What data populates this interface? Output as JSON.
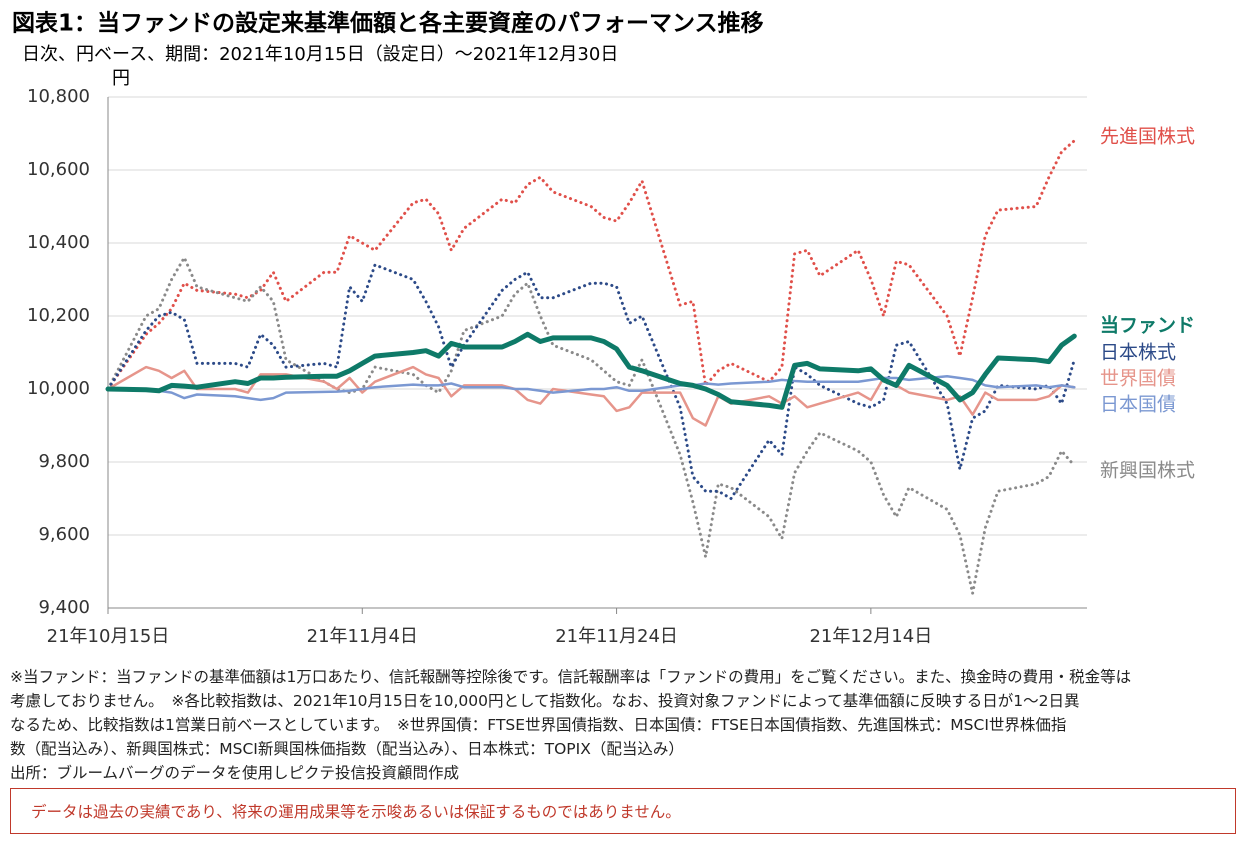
{
  "header": {
    "title": "図表1：当ファンドの設定来基準価額と各主要資産のパフォーマンス推移",
    "subtitle": "日次、円ベース、期間：2021年10月15日（設定日）～2021年12月30日"
  },
  "chart_data": {
    "type": "line",
    "y_unit": "円",
    "grid": true,
    "x": [
      "2021-10-15",
      "2021-10-18",
      "2021-10-19",
      "2021-10-20",
      "2021-10-21",
      "2021-10-22",
      "2021-10-25",
      "2021-10-26",
      "2021-10-27",
      "2021-10-28",
      "2021-10-29",
      "2021-11-01",
      "2021-11-02",
      "2021-11-03",
      "2021-11-04",
      "2021-11-05",
      "2021-11-08",
      "2021-11-09",
      "2021-11-10",
      "2021-11-11",
      "2021-11-12",
      "2021-11-15",
      "2021-11-16",
      "2021-11-17",
      "2021-11-18",
      "2021-11-19",
      "2021-11-22",
      "2021-11-23",
      "2021-11-24",
      "2021-11-25",
      "2021-11-26",
      "2021-11-29",
      "2021-11-30",
      "2021-12-01",
      "2021-12-02",
      "2021-12-03",
      "2021-12-06",
      "2021-12-07",
      "2021-12-08",
      "2021-12-09",
      "2021-12-10",
      "2021-12-13",
      "2021-12-14",
      "2021-12-15",
      "2021-12-16",
      "2021-12-17",
      "2021-12-20",
      "2021-12-21",
      "2021-12-22",
      "2021-12-23",
      "2021-12-24",
      "2021-12-27",
      "2021-12-28",
      "2021-12-29",
      "2021-12-30"
    ],
    "xlim": [
      "2021-10-15",
      "2021-12-31"
    ],
    "xticks": [
      {
        "value": "2021-10-15",
        "label": "21年10月15日"
      },
      {
        "value": "2021-11-04",
        "label": "21年11月4日"
      },
      {
        "value": "2021-11-24",
        "label": "21年11月24日"
      },
      {
        "value": "2021-12-14",
        "label": "21年12月14日"
      }
    ],
    "ylim": [
      9400,
      10800
    ],
    "yticks": [
      {
        "value": 9400,
        "label": "9,400"
      },
      {
        "value": 9600,
        "label": "9,600"
      },
      {
        "value": 9800,
        "label": "9,800"
      },
      {
        "value": 10000,
        "label": "10,000"
      },
      {
        "value": 10200,
        "label": "10,200"
      },
      {
        "value": 10400,
        "label": "10,400"
      },
      {
        "value": 10600,
        "label": "10,600"
      },
      {
        "value": 10800,
        "label": "10,800"
      }
    ],
    "series": [
      {
        "name": "先進国株式",
        "color": "#e0504a",
        "line_style": "dotted",
        "values": [
          10000,
          10150,
          10180,
          10220,
          10290,
          10270,
          10260,
          10250,
          10270,
          10320,
          10240,
          10320,
          10320,
          10420,
          10400,
          10380,
          10510,
          10520,
          10480,
          10380,
          10440,
          10520,
          10510,
          10560,
          10580,
          10540,
          10500,
          10470,
          10460,
          10510,
          10570,
          10230,
          10240,
          10010,
          10050,
          10070,
          10020,
          10060,
          10370,
          10380,
          10310,
          10380,
          10300,
          10200,
          10350,
          10340,
          10200,
          10090,
          10250,
          10420,
          10490,
          10500,
          10580,
          10650,
          10680
        ]
      },
      {
        "name": "新興国株式",
        "color": "#8a8a8a",
        "line_style": "dotted",
        "values": [
          10000,
          10200,
          10220,
          10300,
          10360,
          10280,
          10250,
          10240,
          10280,
          10240,
          10080,
          10020,
          10000,
          9990,
          10000,
          10060,
          10040,
          10010,
          9990,
          10050,
          10160,
          10200,
          10260,
          10290,
          10200,
          10120,
          10080,
          10050,
          10020,
          10010,
          10080,
          9820,
          9690,
          9540,
          9740,
          9730,
          9650,
          9590,
          9770,
          9830,
          9880,
          9830,
          9800,
          9710,
          9650,
          9730,
          9670,
          9600,
          9440,
          9620,
          9720,
          9740,
          9760,
          9830,
          9790
        ]
      },
      {
        "name": "日本株式",
        "color": "#2c4a88",
        "line_style": "dotted",
        "values": [
          10000,
          10160,
          10200,
          10210,
          10190,
          10070,
          10070,
          10060,
          10150,
          10120,
          10060,
          10070,
          10060,
          10280,
          10240,
          10340,
          10300,
          10240,
          10170,
          10060,
          10120,
          10270,
          10300,
          10320,
          10250,
          10250,
          10290,
          10290,
          10280,
          10180,
          10200,
          9950,
          9760,
          9720,
          9720,
          9700,
          9860,
          9820,
          10060,
          10040,
          10010,
          9960,
          9950,
          9970,
          10120,
          10130,
          9960,
          9780,
          9920,
          9940,
          10010,
          10000,
          10010,
          9960,
          10080
        ]
      },
      {
        "name": "世界国債",
        "color": "#e6958b",
        "line_style": "solid",
        "values": [
          10000,
          10060,
          10050,
          10030,
          10050,
          10000,
          10000,
          9990,
          10040,
          10040,
          10040,
          10020,
          10000,
          10030,
          9990,
          10020,
          10060,
          10040,
          10030,
          9980,
          10010,
          10010,
          10000,
          9970,
          9960,
          10000,
          9985,
          9980,
          9940,
          9950,
          9990,
          9990,
          9920,
          9900,
          9980,
          9960,
          9980,
          9960,
          9980,
          9950,
          9960,
          9990,
          9970,
          10030,
          10010,
          9990,
          9970,
          9980,
          9930,
          9990,
          9970,
          9970,
          9980,
          10010,
          10005
        ]
      },
      {
        "name": "日本国債",
        "color": "#7b98d2",
        "line_style": "solid",
        "values": [
          10000,
          9998,
          9995,
          9990,
          9975,
          9985,
          9980,
          9975,
          9970,
          9975,
          9990,
          9992,
          9993,
          9995,
          10000,
          10005,
          10012,
          10010,
          10010,
          10015,
          10005,
          10005,
          10000,
          10000,
          9995,
          9990,
          10000,
          10000,
          10005,
          9995,
          9995,
          10010,
          10010,
          10015,
          10012,
          10015,
          10020,
          10025,
          10022,
          10020,
          10020,
          10020,
          10025,
          10030,
          10030,
          10025,
          10035,
          10030,
          10025,
          10010,
          10005,
          10010,
          10005,
          10010,
          10005
        ]
      },
      {
        "name": "当ファンド",
        "color": "#0e7a68",
        "line_style": "thick",
        "values": [
          10000,
          9998,
          9995,
          10010,
          10008,
          10005,
          10020,
          10015,
          10030,
          10030,
          10032,
          10035,
          10035,
          10050,
          10070,
          10090,
          10100,
          10105,
          10090,
          10125,
          10115,
          10115,
          10130,
          10150,
          10130,
          10140,
          10140,
          10130,
          10110,
          10060,
          10050,
          10015,
          10010,
          10000,
          9985,
          9965,
          9955,
          9950,
          10065,
          10070,
          10055,
          10050,
          10055,
          10025,
          10010,
          10065,
          10010,
          9970,
          9990,
          10040,
          10085,
          10080,
          10075,
          10120,
          10145
        ]
      }
    ]
  },
  "notes": [
    "※当ファンド：当ファンドの基準価額は1万口あたり、信託報酬等控除後です。信託報酬率は「ファンドの費用」をご覧ください。また、換金時の費用・税金等は",
    "考慮しておりません。　※各比較指数は、2021年10月15日を10,000円として指数化。なお、投資対象ファンドによって基準価額に反映する日が1～2日異",
    "なるため、比較指数は1営業日前ベースとしています。　※世界国債：FTSE世界国債指数、日本国債：FTSE日本国債指数、先進国株式：MSCI世界株価指",
    "数（配当込み）、新興国株式：MSCI新興国株価指数（配当込み）、日本株式：TOPIX（配当込み）",
    "出所：ブルームバーグのデータを使用しピクテ投信投資顧問作成"
  ],
  "disclaimer": "データは過去の実績であり、将来の運用成果等を示唆あるいは保証するものではありません。"
}
